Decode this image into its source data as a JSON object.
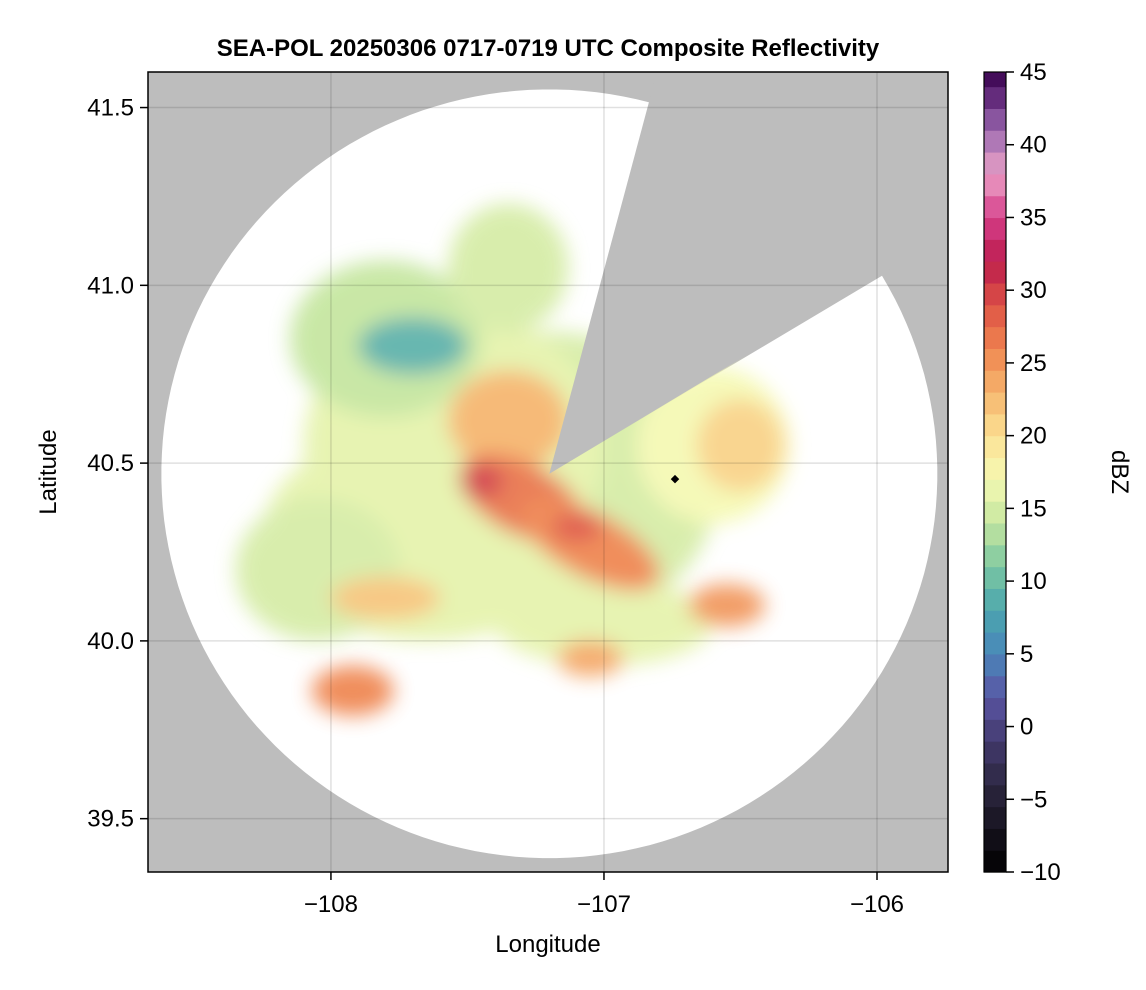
{
  "chart_data": {
    "type": "heatmap",
    "title": "SEA-POL 20250306 0717-0719 UTC Composite Reflectivity",
    "xlabel": "Longitude",
    "ylabel": "Latitude",
    "xlim": [
      -108.67,
      -105.74
    ],
    "ylim": [
      39.35,
      41.6
    ],
    "xticks": [
      -108,
      -107,
      -106
    ],
    "xtick_labels": [
      "−108",
      "−107",
      "−106"
    ],
    "yticks": [
      39.5,
      40.0,
      40.5,
      41.0,
      41.5
    ],
    "ytick_labels": [
      "39.5",
      "40.0",
      "40.5",
      "41.0",
      "41.5"
    ],
    "grid": true,
    "background_color": "#bdbdbd",
    "radar_site": [
      -107.2,
      40.47
    ],
    "range_km": 120,
    "blocked_sectors_deg": [
      [
        15,
        59
      ]
    ],
    "marker": {
      "lon": -106.74,
      "lat": 40.455,
      "color": "#000000"
    },
    "colorbar": {
      "label": "dBZ",
      "min": -10,
      "max": 45,
      "step": 1.5,
      "ticks": [
        -10,
        -5,
        0,
        5,
        10,
        15,
        20,
        25,
        30,
        35,
        40,
        45
      ],
      "tick_labels": [
        "−10",
        "−5",
        "0",
        "5",
        "10",
        "15",
        "20",
        "25",
        "30",
        "35",
        "40",
        "45"
      ],
      "colormap": [
        [
          -10,
          "#000000"
        ],
        [
          -7,
          "#17131e"
        ],
        [
          -4,
          "#2c2741"
        ],
        [
          -1,
          "#433a6d"
        ],
        [
          2,
          "#5a55a3"
        ],
        [
          5,
          "#4a86ba"
        ],
        [
          8,
          "#4ba6ae"
        ],
        [
          11,
          "#7cc7a2"
        ],
        [
          14,
          "#c5e69f"
        ],
        [
          17,
          "#f5f9b3"
        ],
        [
          20,
          "#fbe194"
        ],
        [
          23,
          "#f6b56d"
        ],
        [
          26,
          "#ef8550"
        ],
        [
          29,
          "#de5245"
        ],
        [
          32,
          "#bb1c4d"
        ],
        [
          35,
          "#d63e8a"
        ],
        [
          38,
          "#eba2c7"
        ],
        [
          41,
          "#9b6ab0"
        ],
        [
          44,
          "#52176a"
        ],
        [
          45,
          "#3f0a55"
        ]
      ]
    },
    "echo_cells": [
      {
        "lon": -107.2,
        "lat": 40.45,
        "rx_deg": 0.62,
        "ry_deg": 0.42,
        "dbz": 15
      },
      {
        "lon": -107.55,
        "lat": 40.55,
        "rx_deg": 0.55,
        "ry_deg": 0.38,
        "dbz": 16
      },
      {
        "lon": -107.65,
        "lat": 40.3,
        "rx_deg": 0.6,
        "ry_deg": 0.3,
        "dbz": 16
      },
      {
        "lon": -108.05,
        "lat": 40.2,
        "rx_deg": 0.3,
        "ry_deg": 0.2,
        "dbz": 15
      },
      {
        "lon": -107.8,
        "lat": 40.85,
        "rx_deg": 0.35,
        "ry_deg": 0.22,
        "dbz": 14
      },
      {
        "lon": -107.35,
        "lat": 41.05,
        "rx_deg": 0.22,
        "ry_deg": 0.18,
        "dbz": 15
      },
      {
        "lon": -106.6,
        "lat": 40.55,
        "rx_deg": 0.28,
        "ry_deg": 0.22,
        "dbz": 17
      },
      {
        "lon": -107.0,
        "lat": 40.05,
        "rx_deg": 0.4,
        "ry_deg": 0.12,
        "dbz": 16
      },
      {
        "lon": -107.35,
        "lat": 40.62,
        "rx_deg": 0.22,
        "ry_deg": 0.14,
        "dbz": 23
      },
      {
        "lon": -107.3,
        "lat": 40.4,
        "rx_deg": 0.25,
        "ry_deg": 0.1,
        "dbz": 27
      },
      {
        "lon": -107.05,
        "lat": 40.27,
        "rx_deg": 0.28,
        "ry_deg": 0.09,
        "dbz": 26
      },
      {
        "lon": -107.45,
        "lat": 40.45,
        "rx_deg": 0.08,
        "ry_deg": 0.05,
        "dbz": 30
      },
      {
        "lon": -107.1,
        "lat": 40.32,
        "rx_deg": 0.09,
        "ry_deg": 0.04,
        "dbz": 29
      },
      {
        "lon": -107.7,
        "lat": 40.83,
        "rx_deg": 0.2,
        "ry_deg": 0.08,
        "dbz": 9
      },
      {
        "lon": -107.92,
        "lat": 39.86,
        "rx_deg": 0.15,
        "ry_deg": 0.07,
        "dbz": 26
      },
      {
        "lon": -106.55,
        "lat": 40.1,
        "rx_deg": 0.14,
        "ry_deg": 0.06,
        "dbz": 25
      },
      {
        "lon": -106.5,
        "lat": 40.55,
        "rx_deg": 0.16,
        "ry_deg": 0.13,
        "dbz": 21
      },
      {
        "lon": -107.05,
        "lat": 39.95,
        "rx_deg": 0.12,
        "ry_deg": 0.05,
        "dbz": 24
      },
      {
        "lon": -107.8,
        "lat": 40.12,
        "rx_deg": 0.2,
        "ry_deg": 0.06,
        "dbz": 22
      }
    ]
  }
}
